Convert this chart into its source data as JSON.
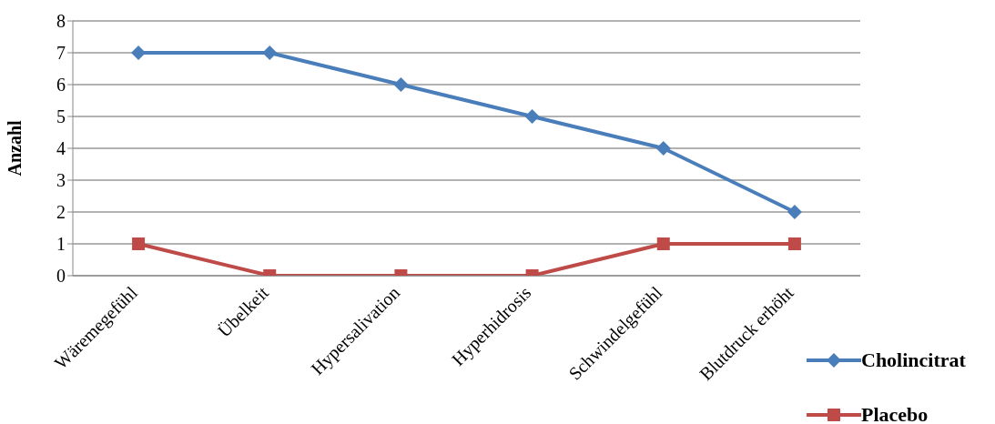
{
  "chart_data": {
    "type": "line",
    "ylabel": "Anzahl",
    "categories": [
      "Wäremegefühl",
      "Übelkeit",
      "Hypersalivation",
      "Hyperhidrosis",
      "Schwindelgefühl",
      "Blutdruck erhöht"
    ],
    "series": [
      {
        "name": "Cholincitrat",
        "color": "#4a7ebb",
        "marker": "diamond",
        "values": [
          7,
          7,
          6,
          5,
          4,
          2
        ]
      },
      {
        "name": "Placebo",
        "color": "#be4b48",
        "marker": "square",
        "values": [
          1,
          0,
          0,
          0,
          1,
          1
        ]
      }
    ],
    "ylim": [
      0,
      8
    ],
    "yticks": [
      0,
      1,
      2,
      3,
      4,
      5,
      6,
      7,
      8
    ],
    "grid": "y",
    "legend": "bottom right",
    "line_style": "solid"
  }
}
